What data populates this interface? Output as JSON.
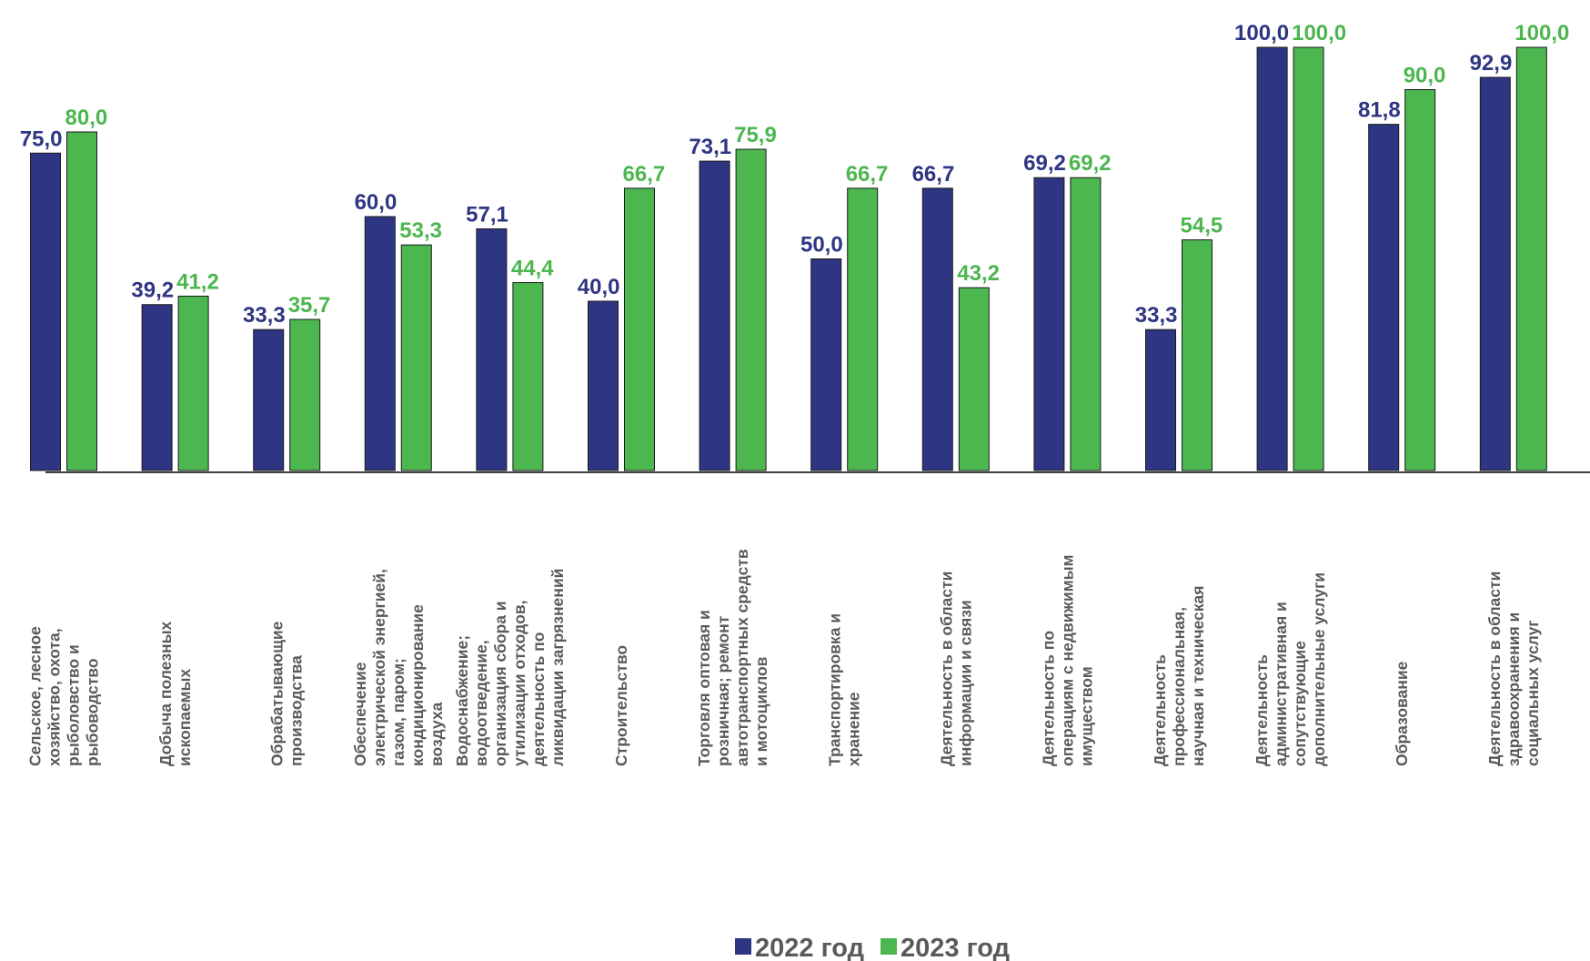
{
  "chart_data": {
    "type": "bar",
    "categories": [
      "Сельское, лесное хозяйство, охота, рыболовство и рыбоводство",
      "Добыча полезных ископаемых",
      "Обрабатывающие производства",
      "Обеспечение электрической энергией, газом, паром; кондиционирование воздуха",
      "Водоснабжение; водоотведение, организация сбора и утилизации отходов, деятельность по ликвидации загрязнений",
      "Строительство",
      "Торговля оптовая и розничная; ремонт автотранспортных средств и мотоциклов",
      "Транспортировка и хранение",
      "Деятельность в области информации и связи",
      "Деятельность по операциям с недвижимым имуществом",
      "Деятельность профессиональная, научная и техническая",
      "Деятельность административная и сопутствующие дополнительные услуги",
      "Образование",
      "Деятельность в области здравоохранения и социальных услуг"
    ],
    "series": [
      {
        "name": "2022 год",
        "color": "#2e3583",
        "values": [
          75.0,
          39.2,
          33.3,
          60.0,
          57.1,
          40.0,
          73.1,
          50.0,
          66.7,
          69.2,
          33.3,
          100.0,
          81.8,
          92.9
        ],
        "value_labels": [
          "75,0",
          "39,2",
          "33,3",
          "60,0",
          "57,1",
          "40,0",
          "73,1",
          "50,0",
          "66,7",
          "69,2",
          "33,3",
          "100,0",
          "81,8",
          "92,9"
        ]
      },
      {
        "name": "2023 год",
        "color": "#4cb64f",
        "values": [
          80.0,
          41.2,
          35.7,
          53.3,
          44.4,
          66.7,
          75.9,
          66.7,
          43.2,
          69.2,
          54.5,
          100.0,
          90.0,
          100.0
        ],
        "value_labels": [
          "80,0",
          "41,2",
          "35,7",
          "53,3",
          "44,4",
          "66,7",
          "75,9",
          "66,7",
          "43,2",
          "69,2",
          "54,5",
          "100,0",
          "90,0",
          "100,0"
        ]
      }
    ],
    "ylim": [
      0,
      100
    ],
    "legend": "bottom"
  }
}
